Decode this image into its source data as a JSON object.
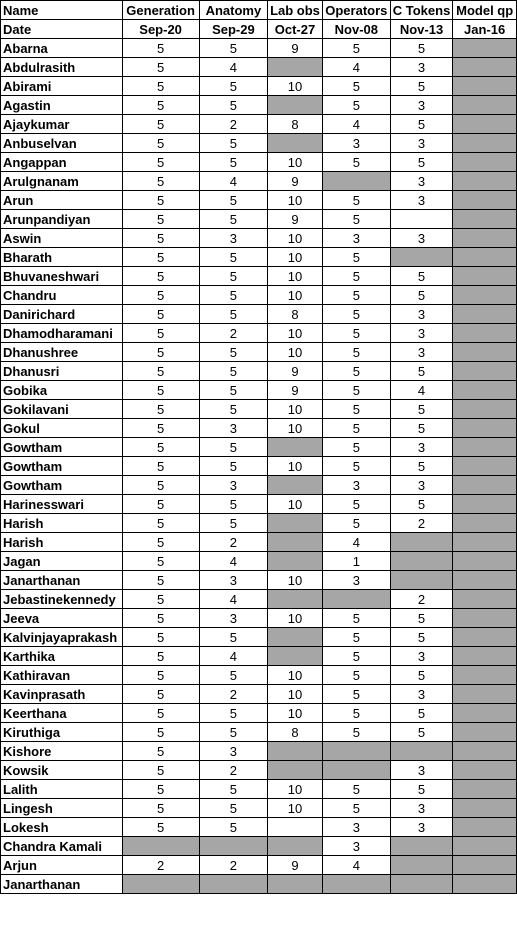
{
  "colors": {
    "gray_cell": "#a6a6a6",
    "border": "#000000"
  },
  "headers": [
    "Name",
    "Generation",
    "Anatomy",
    "Lab obs",
    "Operators",
    "C Tokens",
    "Model qp"
  ],
  "dates": [
    "Date",
    "Sep-20",
    "Sep-29",
    "Oct-27",
    "Nov-08",
    "Nov-13",
    "Jan-16"
  ],
  "rows": [
    {
      "name": "Abarna",
      "cells": [
        {
          "v": "5"
        },
        {
          "v": "5"
        },
        {
          "v": "9"
        },
        {
          "v": "5"
        },
        {
          "v": "5"
        },
        {
          "g": true
        }
      ]
    },
    {
      "name": "Abdulrasith",
      "cells": [
        {
          "v": "5"
        },
        {
          "v": "4"
        },
        {
          "g": true
        },
        {
          "v": "4"
        },
        {
          "v": "3"
        },
        {
          "g": true
        }
      ]
    },
    {
      "name": "Abirami",
      "cells": [
        {
          "v": "5"
        },
        {
          "v": "5"
        },
        {
          "v": "10"
        },
        {
          "v": "5"
        },
        {
          "v": "5"
        },
        {
          "g": true
        }
      ]
    },
    {
      "name": "Agastin",
      "cells": [
        {
          "v": "5"
        },
        {
          "v": "5"
        },
        {
          "g": true
        },
        {
          "v": "5"
        },
        {
          "v": "3"
        },
        {
          "g": true
        }
      ]
    },
    {
      "name": "Ajaykumar",
      "cells": [
        {
          "v": "5"
        },
        {
          "v": "2"
        },
        {
          "v": "8"
        },
        {
          "v": "4"
        },
        {
          "v": "5"
        },
        {
          "g": true
        }
      ]
    },
    {
      "name": "Anbuselvan",
      "cells": [
        {
          "v": "5"
        },
        {
          "v": "5"
        },
        {
          "g": true
        },
        {
          "v": "3"
        },
        {
          "v": "3"
        },
        {
          "g": true
        }
      ]
    },
    {
      "name": "Angappan",
      "cells": [
        {
          "v": "5"
        },
        {
          "v": "5"
        },
        {
          "v": "10"
        },
        {
          "v": "5"
        },
        {
          "v": "5"
        },
        {
          "g": true
        }
      ]
    },
    {
      "name": "Arulgnanam",
      "cells": [
        {
          "v": "5"
        },
        {
          "v": "4"
        },
        {
          "v": "9"
        },
        {
          "g": true
        },
        {
          "v": "3"
        },
        {
          "g": true
        }
      ]
    },
    {
      "name": "Arun",
      "cells": [
        {
          "v": "5"
        },
        {
          "v": "5"
        },
        {
          "v": "10"
        },
        {
          "v": "5"
        },
        {
          "v": "3"
        },
        {
          "g": true
        }
      ]
    },
    {
      "name": "Arunpandiyan",
      "cells": [
        {
          "v": "5"
        },
        {
          "v": "5"
        },
        {
          "v": "9"
        },
        {
          "v": "5"
        },
        {
          "v": ""
        },
        {
          "g": true
        }
      ]
    },
    {
      "name": "Aswin",
      "cells": [
        {
          "v": "5"
        },
        {
          "v": "3"
        },
        {
          "v": "10"
        },
        {
          "v": "3"
        },
        {
          "v": "3"
        },
        {
          "g": true
        }
      ]
    },
    {
      "name": "Bharath",
      "cells": [
        {
          "v": "5"
        },
        {
          "v": "5"
        },
        {
          "v": "10"
        },
        {
          "v": "5"
        },
        {
          "g": true
        },
        {
          "g": true
        }
      ]
    },
    {
      "name": "Bhuvaneshwari",
      "cells": [
        {
          "v": "5"
        },
        {
          "v": "5"
        },
        {
          "v": "10"
        },
        {
          "v": "5"
        },
        {
          "v": "5"
        },
        {
          "g": true
        }
      ]
    },
    {
      "name": "Chandru",
      "cells": [
        {
          "v": "5"
        },
        {
          "v": "5"
        },
        {
          "v": "10"
        },
        {
          "v": "5"
        },
        {
          "v": "5"
        },
        {
          "g": true
        }
      ]
    },
    {
      "name": "Danirichard",
      "cells": [
        {
          "v": "5"
        },
        {
          "v": "5"
        },
        {
          "v": "8"
        },
        {
          "v": "5"
        },
        {
          "v": "3"
        },
        {
          "g": true
        }
      ]
    },
    {
      "name": "Dhamodharamani",
      "cells": [
        {
          "v": "5"
        },
        {
          "v": "2"
        },
        {
          "v": "10"
        },
        {
          "v": "5"
        },
        {
          "v": "3"
        },
        {
          "g": true
        }
      ]
    },
    {
      "name": "Dhanushree",
      "cells": [
        {
          "v": "5"
        },
        {
          "v": "5"
        },
        {
          "v": "10"
        },
        {
          "v": "5"
        },
        {
          "v": "3"
        },
        {
          "g": true
        }
      ]
    },
    {
      "name": "Dhanusri",
      "cells": [
        {
          "v": "5"
        },
        {
          "v": "5"
        },
        {
          "v": "9"
        },
        {
          "v": "5"
        },
        {
          "v": "5"
        },
        {
          "g": true
        }
      ]
    },
    {
      "name": "Gobika",
      "cells": [
        {
          "v": "5"
        },
        {
          "v": "5"
        },
        {
          "v": "9"
        },
        {
          "v": "5"
        },
        {
          "v": "4"
        },
        {
          "g": true
        }
      ]
    },
    {
      "name": "Gokilavani",
      "cells": [
        {
          "v": "5"
        },
        {
          "v": "5"
        },
        {
          "v": "10"
        },
        {
          "v": "5"
        },
        {
          "v": "5"
        },
        {
          "g": true
        }
      ]
    },
    {
      "name": "Gokul",
      "cells": [
        {
          "v": "5"
        },
        {
          "v": "3"
        },
        {
          "v": "10"
        },
        {
          "v": "5"
        },
        {
          "v": "5"
        },
        {
          "g": true
        }
      ]
    },
    {
      "name": "Gowtham",
      "cells": [
        {
          "v": "5"
        },
        {
          "v": "5"
        },
        {
          "g": true
        },
        {
          "v": "5"
        },
        {
          "v": "3"
        },
        {
          "g": true
        }
      ]
    },
    {
      "name": "Gowtham",
      "cells": [
        {
          "v": "5"
        },
        {
          "v": "5"
        },
        {
          "v": "10"
        },
        {
          "v": "5"
        },
        {
          "v": "5"
        },
        {
          "g": true
        }
      ]
    },
    {
      "name": "Gowtham",
      "cells": [
        {
          "v": "5"
        },
        {
          "v": "3"
        },
        {
          "g": true
        },
        {
          "v": "3"
        },
        {
          "v": "3"
        },
        {
          "g": true
        }
      ]
    },
    {
      "name": "Harinesswari",
      "cells": [
        {
          "v": "5"
        },
        {
          "v": "5"
        },
        {
          "v": "10"
        },
        {
          "v": "5"
        },
        {
          "v": "5"
        },
        {
          "g": true
        }
      ]
    },
    {
      "name": "Harish",
      "cells": [
        {
          "v": "5"
        },
        {
          "v": "5"
        },
        {
          "g": true
        },
        {
          "v": "5"
        },
        {
          "v": "2"
        },
        {
          "g": true
        }
      ]
    },
    {
      "name": "Harish",
      "cells": [
        {
          "v": "5"
        },
        {
          "v": "2"
        },
        {
          "g": true
        },
        {
          "v": "4"
        },
        {
          "g": true
        },
        {
          "g": true
        }
      ]
    },
    {
      "name": "Jagan",
      "cells": [
        {
          "v": "5"
        },
        {
          "v": "4"
        },
        {
          "g": true
        },
        {
          "v": "1"
        },
        {
          "g": true
        },
        {
          "g": true
        }
      ]
    },
    {
      "name": "Janarthanan",
      "cells": [
        {
          "v": "5"
        },
        {
          "v": "3"
        },
        {
          "v": "10"
        },
        {
          "v": "3"
        },
        {
          "g": true
        },
        {
          "g": true
        }
      ]
    },
    {
      "name": "Jebastinekennedy",
      "cells": [
        {
          "v": "5"
        },
        {
          "v": "4"
        },
        {
          "g": true
        },
        {
          "g": true
        },
        {
          "v": "2"
        },
        {
          "g": true
        }
      ]
    },
    {
      "name": "Jeeva",
      "cells": [
        {
          "v": "5"
        },
        {
          "v": "3"
        },
        {
          "v": "10"
        },
        {
          "v": "5"
        },
        {
          "v": "5"
        },
        {
          "g": true
        }
      ]
    },
    {
      "name": "Kalvinjayaprakash",
      "cells": [
        {
          "v": "5"
        },
        {
          "v": "5"
        },
        {
          "g": true
        },
        {
          "v": "5"
        },
        {
          "v": "5"
        },
        {
          "g": true
        }
      ]
    },
    {
      "name": "Karthika",
      "cells": [
        {
          "v": "5"
        },
        {
          "v": "4"
        },
        {
          "g": true
        },
        {
          "v": "5"
        },
        {
          "v": "3"
        },
        {
          "g": true
        }
      ]
    },
    {
      "name": "Kathiravan",
      "cells": [
        {
          "v": "5"
        },
        {
          "v": "5"
        },
        {
          "v": "10"
        },
        {
          "v": "5"
        },
        {
          "v": "5"
        },
        {
          "g": true
        }
      ]
    },
    {
      "name": "Kavinprasath",
      "cells": [
        {
          "v": "5"
        },
        {
          "v": "2"
        },
        {
          "v": "10"
        },
        {
          "v": "5"
        },
        {
          "v": "3"
        },
        {
          "g": true
        }
      ]
    },
    {
      "name": "Keerthana",
      "cells": [
        {
          "v": "5"
        },
        {
          "v": "5"
        },
        {
          "v": "10"
        },
        {
          "v": "5"
        },
        {
          "v": "5"
        },
        {
          "g": true
        }
      ]
    },
    {
      "name": "Kiruthiga",
      "cells": [
        {
          "v": "5"
        },
        {
          "v": "5"
        },
        {
          "v": "8"
        },
        {
          "v": "5"
        },
        {
          "v": "5"
        },
        {
          "g": true
        }
      ]
    },
    {
      "name": "Kishore",
      "cells": [
        {
          "v": "5"
        },
        {
          "v": "3"
        },
        {
          "g": true
        },
        {
          "g": true
        },
        {
          "g": true
        },
        {
          "g": true
        }
      ]
    },
    {
      "name": "Kowsik",
      "cells": [
        {
          "v": "5"
        },
        {
          "v": "2"
        },
        {
          "g": true
        },
        {
          "g": true
        },
        {
          "v": "3"
        },
        {
          "g": true
        }
      ]
    },
    {
      "name": "Lalith",
      "cells": [
        {
          "v": "5"
        },
        {
          "v": "5"
        },
        {
          "v": "10"
        },
        {
          "v": "5"
        },
        {
          "v": "5"
        },
        {
          "g": true
        }
      ]
    },
    {
      "name": "Lingesh",
      "cells": [
        {
          "v": "5"
        },
        {
          "v": "5"
        },
        {
          "v": "10"
        },
        {
          "v": "5"
        },
        {
          "v": "3"
        },
        {
          "g": true
        }
      ]
    },
    {
      "name": "Lokesh",
      "cells": [
        {
          "v": "5"
        },
        {
          "v": "5"
        },
        {
          "v": ""
        },
        {
          "v": "3"
        },
        {
          "v": "3"
        },
        {
          "g": true
        }
      ]
    },
    {
      "name": "Chandra Kamali",
      "cells": [
        {
          "g": true
        },
        {
          "g": true
        },
        {
          "g": true
        },
        {
          "v": "3"
        },
        {
          "g": true
        },
        {
          "g": true
        }
      ]
    },
    {
      "name": "Arjun",
      "cells": [
        {
          "v": "2"
        },
        {
          "v": "2"
        },
        {
          "v": "9"
        },
        {
          "v": "4"
        },
        {
          "g": true
        },
        {
          "g": true
        }
      ]
    },
    {
      "name": "Janarthanan",
      "cells": [
        {
          "g": true
        },
        {
          "g": true
        },
        {
          "g": true
        },
        {
          "g": true
        },
        {
          "g": true
        },
        {
          "g": true
        }
      ]
    }
  ]
}
